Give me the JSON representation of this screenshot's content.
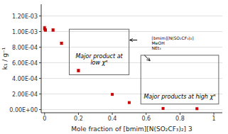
{
  "chart_data": {
    "type": "scatter",
    "x": [
      0.0,
      0.005,
      0.05,
      0.1,
      0.2,
      0.4,
      0.5,
      0.7,
      0.9
    ],
    "y": [
      0.00104,
      0.00102,
      0.00102,
      0.00085,
      0.0005,
      0.000195,
      9e-05,
      1.5e-05,
      1.2e-05
    ],
    "error": [
      2.5e-05,
      1.5e-05,
      1.5e-05,
      1.5e-05,
      1.5e-05,
      0,
      0,
      0,
      0
    ],
    "color": "#cc0000",
    "marker": "square",
    "xlabel": "Mole fraction of [bmim][N(SO₂CF₃)₂] 3",
    "ylabel": "k₁ / g⁻¹",
    "xlim": [
      -0.02,
      1.05
    ],
    "ylim": [
      -4e-05,
      0.00135
    ],
    "xticks": [
      0,
      0.2,
      0.4,
      0.6,
      0.8,
      1
    ],
    "yticks": [
      {
        "value": 0,
        "label": "0.00E+00"
      },
      {
        "value": 0.0002,
        "label": "2.00E-04"
      },
      {
        "value": 0.0004,
        "label": "4.00E-04"
      },
      {
        "value": 0.0006,
        "label": "6.00E-04"
      },
      {
        "value": 0.0008,
        "label": "8.00E-04"
      },
      {
        "value": 0.001,
        "label": "1.00E-03"
      },
      {
        "value": 0.0012,
        "label": "1.20E-03"
      }
    ],
    "grid": true,
    "annotations": [
      {
        "text": "Major product at\nlow χᴿ"
      },
      {
        "text": "Major products at high χᴿ"
      },
      {
        "text": "[bmim][N(SO₂CF₃)₂]\nMeOH\nNEt₃"
      }
    ]
  }
}
